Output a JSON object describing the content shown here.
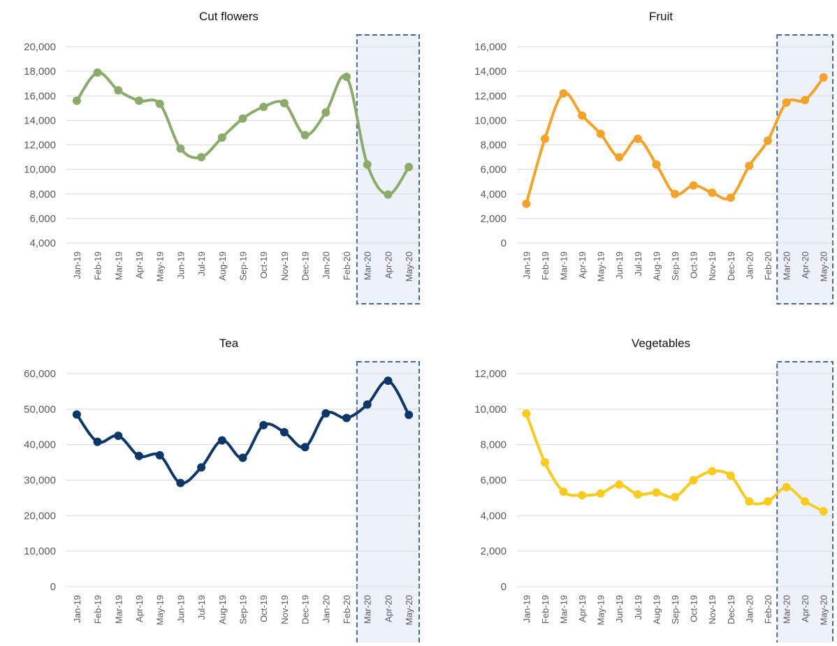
{
  "chart_data": [
    {
      "type": "line",
      "title": "Cut flowers",
      "color": "#8aab6a",
      "grid": true,
      "highlight": [
        "Mar-20",
        "May-20"
      ],
      "categories": [
        "Jan-19",
        "Feb-19",
        "Mar-19",
        "Apr-19",
        "May-19",
        "Jun-19",
        "Jul-19",
        "Aug-19",
        "Sep-19",
        "Oct-19",
        "Nov-19",
        "Dec-19",
        "Jan-20",
        "Feb-20",
        "Mar-20",
        "Apr-20",
        "May-20"
      ],
      "values": [
        15600,
        17900,
        16450,
        15600,
        15350,
        11700,
        11000,
        12600,
        14150,
        15100,
        15400,
        12800,
        14650,
        17550,
        10400,
        7950,
        10200
      ],
      "ylim": [
        4000,
        20000
      ],
      "yticks": [
        {
          "value": 4000,
          "label": "4,000"
        },
        {
          "value": 6000,
          "label": "6,000"
        },
        {
          "value": 8000,
          "label": "8,000"
        },
        {
          "value": 10000,
          "label": "10,000"
        },
        {
          "value": 12000,
          "label": "12,000"
        },
        {
          "value": 14000,
          "label": "14,000"
        },
        {
          "value": 16000,
          "label": "16,000"
        },
        {
          "value": 18000,
          "label": "18,000"
        },
        {
          "value": 20000,
          "label": "20,000"
        }
      ]
    },
    {
      "type": "line",
      "title": "Fruit",
      "color": "#f5a22b",
      "grid": true,
      "highlight": [
        "Mar-20",
        "May-20"
      ],
      "categories": [
        "Jan-19",
        "Feb-19",
        "Mar-19",
        "Apr-19",
        "May-19",
        "Jun-19",
        "Jul-19",
        "Aug-19",
        "Sep-19",
        "Oct-19",
        "Nov-19",
        "Dec-19",
        "Jan-20",
        "Feb-20",
        "Mar-20",
        "Apr-20",
        "May-20"
      ],
      "values": [
        3200,
        8500,
        12200,
        10400,
        8900,
        7000,
        8500,
        6400,
        4000,
        4700,
        4100,
        3700,
        6300,
        8350,
        11450,
        11650,
        13500
      ],
      "ylim": [
        0,
        16000
      ],
      "yticks": [
        0,
        {
          "value": 2000,
          "label": "2,000"
        },
        {
          "value": 4000,
          "label": "4,000"
        },
        {
          "value": 6000,
          "label": "6,000"
        },
        {
          "value": 8000,
          "label": "8,000"
        },
        {
          "value": 10000,
          "label": "10,000"
        },
        {
          "value": 12000,
          "label": "12,000"
        },
        {
          "value": 14000,
          "label": "14,000"
        },
        {
          "value": 16000,
          "label": "16,000"
        }
      ]
    },
    {
      "type": "line",
      "title": "Tea",
      "color": "#0d3768",
      "grid": true,
      "highlight": [
        "Mar-20",
        "May-20"
      ],
      "categories": [
        "Jan-19",
        "Feb-19",
        "Mar-19",
        "Apr-19",
        "May-19",
        "Jun-19",
        "Jul-19",
        "Aug-19",
        "Sep-19",
        "Oct-19",
        "Nov-19",
        "Dec-19",
        "Jan-20",
        "Feb-20",
        "Mar-20",
        "Apr-20",
        "May-20"
      ],
      "values": [
        48500,
        40800,
        42500,
        36800,
        37000,
        29200,
        33600,
        41200,
        36300,
        45500,
        43500,
        39300,
        48800,
        47500,
        51300,
        58000,
        48400
      ],
      "ylim": [
        0,
        60000
      ],
      "yticks": [
        0,
        {
          "value": 10000,
          "label": "10,000"
        },
        {
          "value": 20000,
          "label": "20,000"
        },
        {
          "value": 30000,
          "label": "30,000"
        },
        {
          "value": 40000,
          "label": "40,000"
        },
        {
          "value": 50000,
          "label": "50,000"
        },
        {
          "value": 60000,
          "label": "60,000"
        }
      ]
    },
    {
      "type": "line",
      "title": "Vegetables",
      "color": "#f8cb1e",
      "grid": true,
      "highlight": [
        "Mar-20",
        "May-20"
      ],
      "categories": [
        "Jan-19",
        "Feb-19",
        "Mar-19",
        "Apr-19",
        "May-19",
        "Jun-19",
        "Jul-19",
        "Aug-19",
        "Sep-19",
        "Oct-19",
        "Nov-19",
        "Dec-19",
        "Jan-20",
        "Feb-20",
        "Mar-20",
        "Apr-20",
        "May-20"
      ],
      "values": [
        9750,
        7000,
        5350,
        5150,
        5250,
        5750,
        5200,
        5300,
        5050,
        6000,
        6500,
        6250,
        4800,
        4800,
        5600,
        4800,
        4250
      ],
      "ylim": [
        0,
        12000
      ],
      "yticks": [
        0,
        {
          "value": 2000,
          "label": "2,000"
        },
        {
          "value": 4000,
          "label": "4,000"
        },
        {
          "value": 6000,
          "label": "6,000"
        },
        {
          "value": 8000,
          "label": "8,000"
        },
        {
          "value": 10000,
          "label": "10,000"
        },
        {
          "value": 12000,
          "label": "12,000"
        }
      ]
    }
  ]
}
